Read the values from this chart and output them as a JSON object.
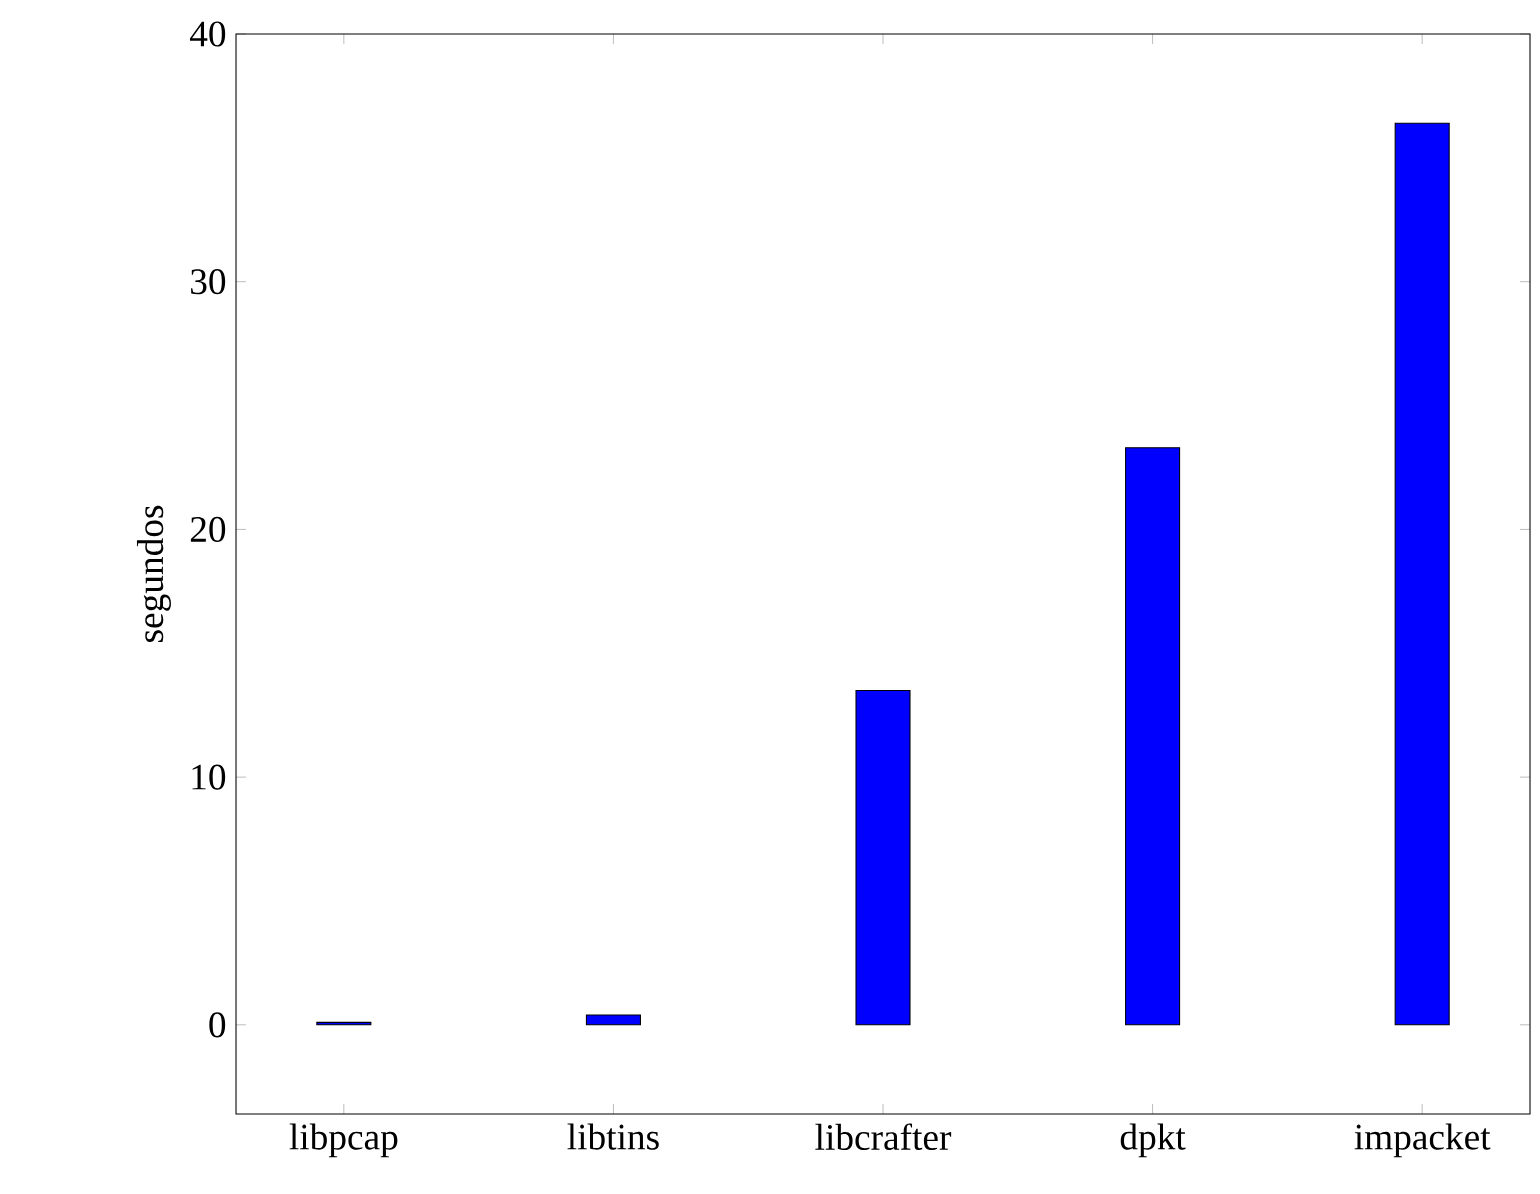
{
  "chart_data": {
    "type": "bar",
    "ylabel": "segundos",
    "categories": [
      "libpcap",
      "libtins",
      "libcrafter",
      "dpkt",
      "impacket"
    ],
    "values": [
      0.1,
      0.4,
      13.5,
      23.3,
      36.4
    ],
    "color": "#0000ff",
    "ylim": [
      -3.6,
      40
    ],
    "yticks": [
      0,
      10,
      20,
      30,
      40
    ],
    "grid": false
  }
}
